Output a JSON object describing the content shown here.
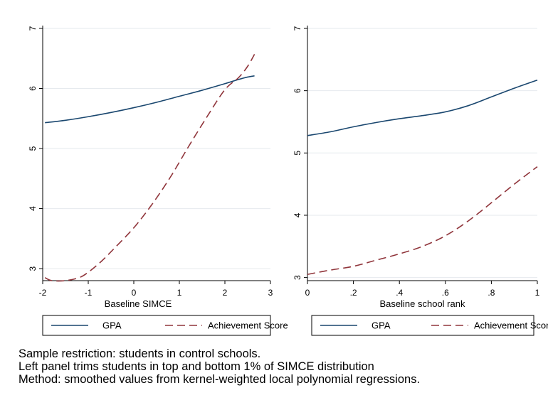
{
  "chart_data": [
    {
      "type": "line",
      "xlabel": "Baseline SIMCE",
      "ylabel": "",
      "xlim": [
        -2,
        3
      ],
      "ylim": [
        2.8,
        7
      ],
      "x_ticks": [
        "-2",
        "-1",
        "0",
        "1",
        "2",
        "3"
      ],
      "y_ticks": [
        "3",
        "4",
        "5",
        "6",
        "7"
      ],
      "grid": "horizontal",
      "legend_position": "bottom",
      "series": [
        {
          "name": "GPA",
          "color": "#1a476f",
          "dash": "solid",
          "x": [
            -1.95,
            -1.5,
            -1.0,
            -0.5,
            0.0,
            0.5,
            1.0,
            1.5,
            2.0,
            2.3,
            2.5,
            2.65
          ],
          "y": [
            5.43,
            5.47,
            5.53,
            5.6,
            5.68,
            5.77,
            5.87,
            5.97,
            6.08,
            6.15,
            6.19,
            6.21
          ]
        },
        {
          "name": "Achievement Score",
          "color": "#90353b",
          "dash": "long-dash",
          "x": [
            -1.95,
            -1.8,
            -1.5,
            -1.2,
            -1.0,
            -0.7,
            -0.4,
            0.0,
            0.4,
            0.8,
            1.2,
            1.6,
            2.0,
            2.3,
            2.5,
            2.65
          ],
          "y": [
            2.85,
            2.8,
            2.8,
            2.85,
            2.94,
            3.13,
            3.36,
            3.68,
            4.07,
            4.52,
            5.03,
            5.52,
            5.98,
            6.18,
            6.37,
            6.57
          ]
        }
      ]
    },
    {
      "type": "line",
      "xlabel": "Baseline school rank",
      "ylabel": "",
      "xlim": [
        0,
        1
      ],
      "ylim": [
        2.95,
        7
      ],
      "x_ticks": [
        "0",
        ".2",
        ".4",
        ".6",
        ".8",
        "1"
      ],
      "y_ticks": [
        "3",
        "4",
        "5",
        "6",
        "7"
      ],
      "grid": "horizontal",
      "legend_position": "bottom",
      "series": [
        {
          "name": "GPA",
          "color": "#1a476f",
          "dash": "solid",
          "x": [
            0.0,
            0.1,
            0.2,
            0.3,
            0.4,
            0.5,
            0.6,
            0.7,
            0.8,
            0.9,
            1.0
          ],
          "y": [
            5.28,
            5.34,
            5.42,
            5.49,
            5.55,
            5.6,
            5.66,
            5.76,
            5.9,
            6.04,
            6.17
          ]
        },
        {
          "name": "Achievement Score",
          "color": "#90353b",
          "dash": "long-dash",
          "x": [
            0.0,
            0.1,
            0.2,
            0.3,
            0.4,
            0.5,
            0.6,
            0.7,
            0.8,
            0.9,
            1.0
          ],
          "y": [
            3.05,
            3.12,
            3.18,
            3.28,
            3.38,
            3.5,
            3.67,
            3.91,
            4.2,
            4.5,
            4.78
          ]
        }
      ]
    }
  ],
  "notes": {
    "line1": "Sample restriction: students in control schools.",
    "line2": "Left panel trims students in top and bottom 1% of SIMCE distribution",
    "line3": "Method: smoothed values from kernel-weighted local polynomial regressions."
  }
}
